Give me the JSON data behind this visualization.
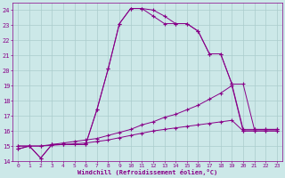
{
  "xlabel": "Windchill (Refroidissement éolien,°C)",
  "bg_color": "#cce8e8",
  "grid_color": "#aacccc",
  "line_color": "#880088",
  "xlim": [
    -0.5,
    23.5
  ],
  "ylim": [
    14,
    24.5
  ],
  "yticks": [
    14,
    15,
    16,
    17,
    18,
    19,
    20,
    21,
    22,
    23,
    24
  ],
  "xticks": [
    0,
    1,
    2,
    3,
    4,
    5,
    6,
    7,
    8,
    9,
    10,
    11,
    12,
    13,
    14,
    15,
    16,
    17,
    18,
    19,
    20,
    21,
    22,
    23
  ],
  "s1_x": [
    0,
    1,
    2,
    3,
    4,
    6,
    7,
    8,
    9,
    10,
    11,
    12,
    13,
    14,
    15,
    16,
    17,
    18,
    19,
    20,
    21,
    22,
    23
  ],
  "s1_y": [
    14.8,
    15.0,
    14.2,
    15.1,
    15.1,
    15.1,
    17.4,
    20.1,
    23.1,
    24.1,
    24.1,
    24.0,
    23.6,
    23.1,
    23.1,
    22.6,
    21.1,
    21.1,
    19.1,
    19.1,
    16.1,
    16.1,
    16.1
  ],
  "s2_x": [
    0,
    1,
    2,
    3,
    4,
    6,
    7,
    8,
    9,
    10,
    11,
    12,
    13,
    14,
    15,
    16,
    17,
    18,
    19,
    20,
    21,
    22,
    23
  ],
  "s2_y": [
    14.8,
    15.0,
    14.2,
    15.1,
    15.1,
    15.1,
    17.4,
    20.1,
    23.1,
    24.1,
    24.1,
    23.6,
    23.1,
    23.1,
    23.1,
    22.6,
    21.1,
    21.1,
    19.1,
    16.1,
    16.1,
    16.1,
    16.1
  ],
  "s3_x": [
    0,
    1,
    2,
    3,
    4,
    5,
    6,
    7,
    8,
    9,
    10,
    11,
    12,
    13,
    14,
    15,
    16,
    17,
    18,
    19,
    20,
    21,
    22,
    23
  ],
  "s3_y": [
    15.0,
    15.0,
    15.0,
    15.1,
    15.2,
    15.3,
    15.4,
    15.5,
    15.7,
    15.9,
    16.1,
    16.4,
    16.6,
    16.9,
    17.1,
    17.4,
    17.7,
    18.1,
    18.5,
    19.0,
    16.0,
    16.0,
    16.0,
    16.0
  ],
  "s4_x": [
    0,
    1,
    2,
    3,
    4,
    5,
    6,
    7,
    8,
    9,
    10,
    11,
    12,
    13,
    14,
    15,
    16,
    17,
    18,
    19,
    20,
    21,
    22,
    23
  ],
  "s4_y": [
    15.0,
    15.0,
    15.0,
    15.05,
    15.1,
    15.15,
    15.2,
    15.3,
    15.4,
    15.55,
    15.7,
    15.85,
    16.0,
    16.1,
    16.2,
    16.3,
    16.4,
    16.5,
    16.6,
    16.7,
    16.0,
    16.0,
    16.0,
    16.0
  ]
}
